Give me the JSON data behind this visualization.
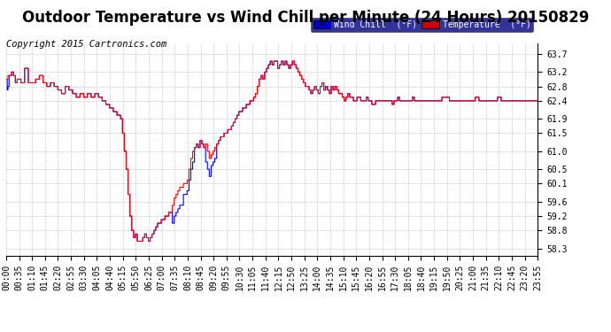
{
  "title": "Outdoor Temperature vs Wind Chill per Minute (24 Hours) 20150829",
  "copyright": "Copyright 2015 Cartronics.com",
  "yticks": [
    58.3,
    58.8,
    59.2,
    59.6,
    60.1,
    60.5,
    61.0,
    61.5,
    61.9,
    62.4,
    62.8,
    63.2,
    63.7
  ],
  "ylim": [
    58.1,
    64.0
  ],
  "bg_color": "#ffffff",
  "plot_bg_color": "#ffffff",
  "grid_color": "#bbbbbb",
  "temp_color": "#ff0000",
  "wind_color": "#0000ff",
  "legend_wind_bg": "#0000cc",
  "legend_temp_bg": "#cc0000",
  "title_fontsize": 12,
  "copyright_fontsize": 7.5,
  "tick_fontsize": 7,
  "x_tick_labels": [
    "00:00",
    "00:35",
    "01:10",
    "01:45",
    "02:20",
    "02:55",
    "03:30",
    "04:05",
    "04:40",
    "05:15",
    "05:50",
    "06:25",
    "07:00",
    "07:35",
    "08:10",
    "08:45",
    "09:20",
    "09:55",
    "10:30",
    "11:05",
    "11:40",
    "12:15",
    "12:50",
    "13:25",
    "14:00",
    "14:35",
    "15:10",
    "15:45",
    "16:20",
    "16:55",
    "17:30",
    "18:05",
    "18:40",
    "19:15",
    "19:50",
    "20:25",
    "21:00",
    "21:35",
    "22:10",
    "22:45",
    "23:20",
    "23:55"
  ]
}
